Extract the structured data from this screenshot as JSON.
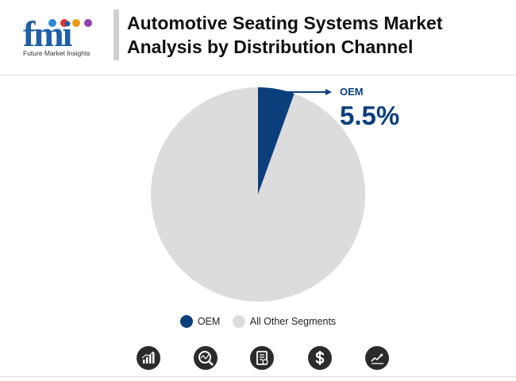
{
  "header": {
    "logo_text": "fmi",
    "logo_tagline": "Future Market Insights",
    "title": "Automotive Seating Systems Market Analysis by Distribution Channel"
  },
  "chart_data": {
    "type": "pie",
    "title": "Automotive Seating Systems Market Analysis by Distribution Channel",
    "slices": [
      {
        "label": "OEM",
        "value": 5.5,
        "color": "#0b3f7c"
      },
      {
        "label": "All Other Segments",
        "value": 94.5,
        "color": "#dcdcdc"
      }
    ],
    "annotation": {
      "label": "OEM",
      "value_text": "5.5%"
    },
    "legend_position": "bottom"
  },
  "footer_icons": [
    "bar-chart-icon",
    "magnifier-chart-icon",
    "document-icon",
    "dollar-icon",
    "line-chart-icon"
  ],
  "colors": {
    "accent": "#0b3f7c",
    "other": "#dcdcdc",
    "icon_bg": "#2b2b2b"
  }
}
